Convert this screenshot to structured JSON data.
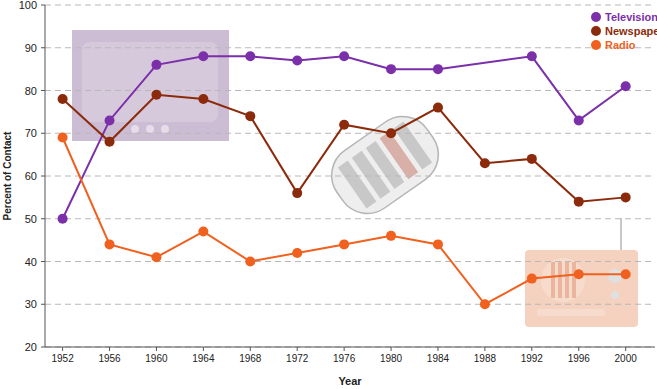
{
  "chart_data": {
    "type": "line",
    "x_label": "Year",
    "y_label": "Percent of Contact",
    "x": [
      1952,
      1956,
      1960,
      1964,
      1968,
      1972,
      1976,
      1980,
      1984,
      1988,
      1992,
      1996,
      2000
    ],
    "xlim": [
      1950.5,
      2002.5
    ],
    "xticks": [
      1952,
      1956,
      1960,
      1964,
      1968,
      1972,
      1976,
      1980,
      1984,
      1988,
      1992,
      1996,
      2000
    ],
    "ylim": [
      20,
      100
    ],
    "yticks": [
      20,
      30,
      40,
      50,
      60,
      70,
      80,
      90,
      100
    ],
    "grid": true,
    "legend": "top-right",
    "series": [
      {
        "name": "Television",
        "color": "#7b2fa8",
        "marker": "circle",
        "line_style": "solid",
        "x": [
          1952,
          1956,
          1960,
          1964,
          1968,
          1972,
          1976,
          1980,
          1984,
          1992,
          1996,
          2000
        ],
        "values": [
          50,
          73,
          86,
          88,
          88,
          87,
          88,
          85,
          85,
          88,
          73,
          81
        ]
      },
      {
        "name": "Newspaper",
        "color": "#8b2b0b",
        "marker": "circle",
        "line_style": "solid",
        "values": [
          78,
          68,
          79,
          78,
          74,
          56,
          72,
          70,
          76,
          63,
          64,
          54,
          55
        ]
      },
      {
        "name": "Radio",
        "color": "#f0601e",
        "marker": "circle",
        "line_style": "solid",
        "values": [
          69,
          44,
          41,
          47,
          40,
          42,
          44,
          46,
          44,
          30,
          36,
          37,
          37
        ]
      }
    ]
  }
}
